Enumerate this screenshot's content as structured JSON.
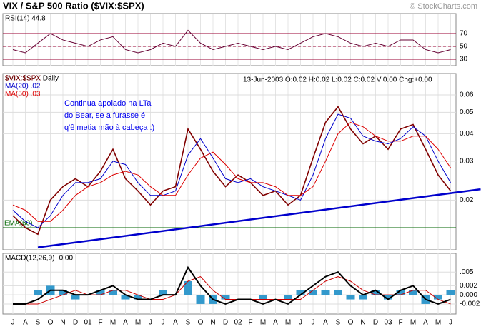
{
  "title": "VIX / S&P 500 Ratio ($VIX:$SPX)",
  "watermark": "© StockCharts.com",
  "chart_data": [
    {
      "type": "rsi",
      "label": "RSI(14) 44.8",
      "ylim": [
        20,
        101
      ],
      "yticks": [
        30,
        50,
        70
      ],
      "levels": [
        70,
        50,
        30
      ],
      "level_color": "#990033",
      "series": [
        {
          "name": "RSI(14)",
          "color": "#660033",
          "values": [
            45,
            40,
            55,
            70,
            60,
            55,
            50,
            60,
            65,
            45,
            40,
            45,
            55,
            50,
            75,
            55,
            45,
            50,
            55,
            50,
            45,
            50,
            45,
            55,
            65,
            70,
            65,
            55,
            50,
            55,
            50,
            60,
            60,
            45,
            40,
            45
          ]
        }
      ]
    },
    {
      "type": "line",
      "label": "$VIX:$SPX Daily",
      "info": "13-Jun-2003 O:0.02 H:0.02 L:0.02 C:0.02 V:0.00 Chg:+0.00",
      "log_scale": true,
      "ylim": [
        0.0119,
        0.075
      ],
      "yticks": [
        0.02,
        0.03,
        0.04,
        0.05,
        0.06
      ],
      "series": [
        {
          "name": "$VIX:$SPX",
          "color": "#800000",
          "values": [
            0.017,
            0.015,
            0.014,
            0.02,
            0.023,
            0.025,
            0.023,
            0.027,
            0.034,
            0.025,
            0.022,
            0.019,
            0.022,
            0.023,
            0.042,
            0.034,
            0.027,
            0.023,
            0.026,
            0.024,
            0.021,
            0.022,
            0.019,
            0.021,
            0.031,
            0.045,
            0.053,
            0.042,
            0.036,
            0.039,
            0.034,
            0.042,
            0.044,
            0.034,
            0.026,
            0.022
          ]
        },
        {
          "name": "MA(20) .02",
          "color": "#0000cc",
          "values": [
            0.018,
            0.016,
            0.015,
            0.017,
            0.021,
            0.024,
            0.024,
            0.025,
            0.03,
            0.029,
            0.024,
            0.021,
            0.021,
            0.022,
            0.032,
            0.038,
            0.031,
            0.025,
            0.024,
            0.025,
            0.023,
            0.022,
            0.021,
            0.02,
            0.026,
            0.038,
            0.049,
            0.047,
            0.039,
            0.037,
            0.036,
            0.038,
            0.043,
            0.039,
            0.03,
            0.024
          ]
        },
        {
          "name": "MA(50) .03",
          "color": "#dd0000",
          "values": [
            0.019,
            0.018,
            0.016,
            0.016,
            0.018,
            0.021,
            0.023,
            0.024,
            0.026,
            0.027,
            0.026,
            0.023,
            0.021,
            0.021,
            0.026,
            0.031,
            0.033,
            0.029,
            0.025,
            0.024,
            0.024,
            0.023,
            0.021,
            0.021,
            0.023,
            0.03,
            0.04,
            0.045,
            0.043,
            0.039,
            0.037,
            0.037,
            0.039,
            0.039,
            0.034,
            0.028
          ]
        }
      ],
      "hline": {
        "name": "EMA(60)",
        "value": 0.015,
        "color": "#006600"
      },
      "trendline": {
        "x": [
          2,
          37.4
        ],
        "values": [
          0.0122,
          0.0224
        ],
        "color": "#0000cc"
      },
      "annotation": [
        "Continua apoiado na LTa",
        "do Bear, se a furasse é",
        "q'ê metia mão à cabeça :)"
      ],
      "annotation_color": "#0000ee"
    },
    {
      "type": "macd",
      "label": "MACD(12,26,9) -0.00",
      "ylim": [
        -0.0042,
        0.0091
      ],
      "yticks": [
        {
          "value": 0.005,
          "label": ".005"
        },
        {
          "value": 0.002,
          "label": "0.002"
        },
        {
          "value": 0,
          "label": "0.000"
        },
        {
          "value": -0.002,
          "label": "-0.002"
        }
      ],
      "categories": [
        "J",
        "A",
        "S",
        "O",
        "N",
        "D",
        "01",
        "F",
        "M",
        "A",
        "M",
        "J",
        "J",
        "A",
        "S",
        "O",
        "N",
        "D",
        "02",
        "F",
        "M",
        "A",
        "M",
        "J",
        "J",
        "A",
        "S",
        "O",
        "N",
        "D",
        "03",
        "F",
        "M",
        "A",
        "M",
        "J"
      ],
      "series": [
        {
          "name": "MACD",
          "color": "#000000",
          "values": [
            -0.002,
            -0.002,
            -0.001,
            0.001,
            0.001,
            0.0,
            0.0,
            0.001,
            0.002,
            0.0,
            -0.001,
            -0.001,
            0.0,
            0.0,
            0.006,
            0.002,
            -0.001,
            -0.002,
            -0.001,
            -0.001,
            -0.002,
            -0.001,
            -0.002,
            0.0,
            0.002,
            0.004,
            0.005,
            0.002,
            0.0,
            0.001,
            -0.001,
            0.001,
            0.002,
            -0.001,
            -0.002,
            -0.001
          ]
        },
        {
          "name": "Signal",
          "color": "#cc0000",
          "values": [
            -0.002,
            -0.002,
            -0.002,
            -0.001,
            0.0,
            0.001,
            0.0,
            0.0,
            0.001,
            0.001,
            0.0,
            -0.001,
            -0.001,
            0.0,
            0.003,
            0.004,
            0.001,
            -0.001,
            -0.001,
            -0.001,
            -0.001,
            -0.001,
            -0.001,
            -0.001,
            0.001,
            0.003,
            0.004,
            0.003,
            0.001,
            0.0,
            0.0,
            0.0,
            0.001,
            0.001,
            -0.001,
            -0.002
          ]
        },
        {
          "name": "Histogram",
          "color": "#3399cc",
          "values": [
            0,
            0,
            0.001,
            0.002,
            0.001,
            -0.001,
            0,
            0.001,
            0.001,
            -0.001,
            -0.001,
            0,
            0.001,
            0,
            0.003,
            -0.002,
            -0.002,
            -0.001,
            0,
            0,
            -0.001,
            0,
            -0.001,
            0.001,
            0.001,
            0.001,
            0.001,
            -0.001,
            -0.001,
            0.001,
            -0.001,
            0.001,
            0.001,
            -0.002,
            -0.001,
            0.001
          ]
        }
      ]
    }
  ]
}
